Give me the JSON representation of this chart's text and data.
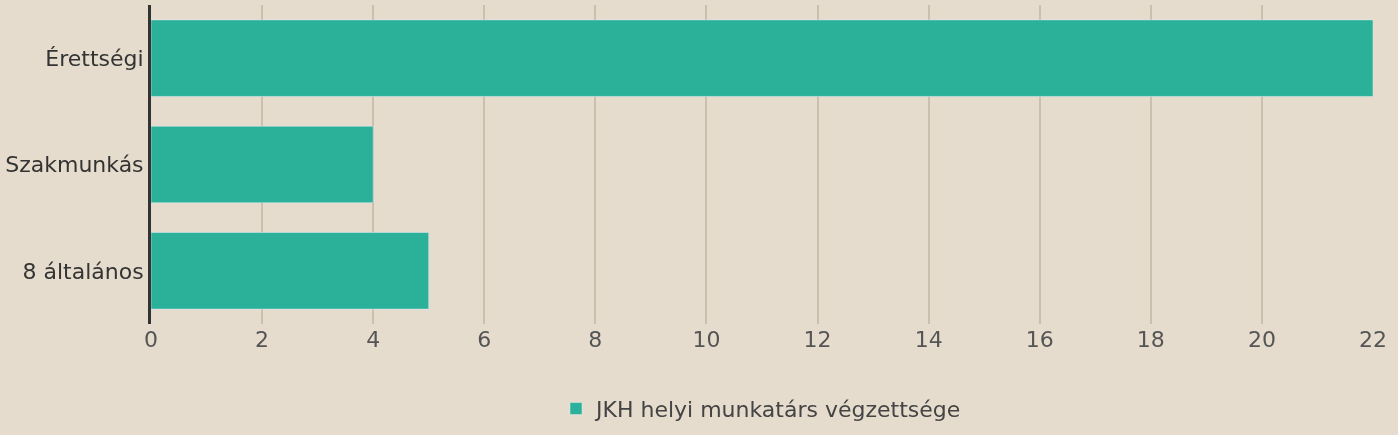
{
  "chart_data": {
    "type": "bar",
    "orientation": "horizontal",
    "categories": [
      "Érettségi",
      "Szakmunkás",
      "8 általános"
    ],
    "series": [
      {
        "name": "JKH helyi munkatárs végzettsége",
        "color": "#2bb09a",
        "values": [
          22,
          4,
          5
        ]
      }
    ],
    "xlim": [
      0,
      22
    ],
    "xticks": [
      0,
      2,
      4,
      6,
      8,
      10,
      12,
      14,
      16,
      18,
      20,
      22
    ],
    "grid": "x",
    "legend": "bottom"
  }
}
